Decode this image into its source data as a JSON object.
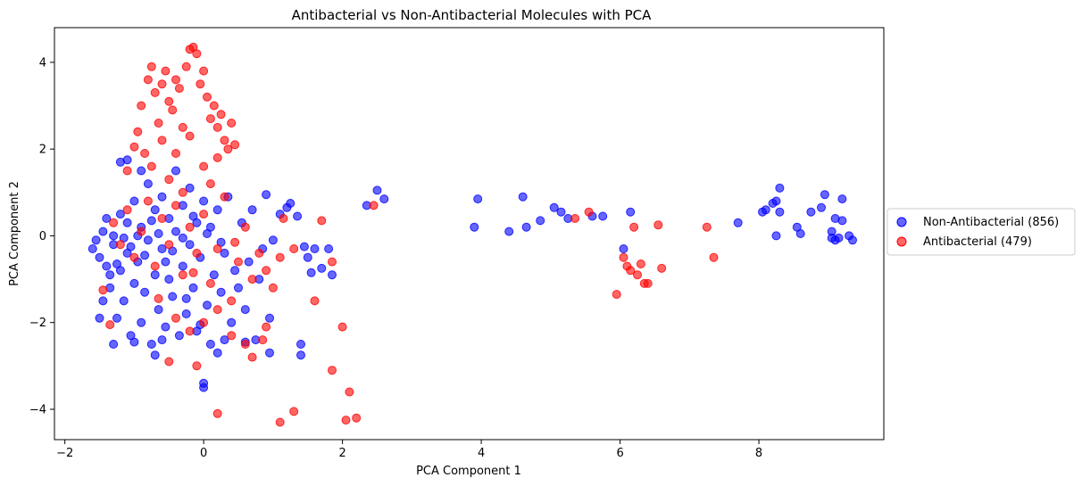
{
  "chart_data": {
    "type": "scatter",
    "title": "Antibacterial vs Non-Antibacterial Molecules with PCA",
    "xlabel": "PCA Component 1",
    "ylabel": "PCA Component 2",
    "xlim": [
      -2.15,
      9.8
    ],
    "ylim": [
      -4.7,
      4.8
    ],
    "xticks": [
      -2,
      0,
      2,
      4,
      6,
      8
    ],
    "yticks": [
      -4,
      -2,
      0,
      2,
      4
    ],
    "grid": false,
    "legend_position": "right-outside",
    "series": [
      {
        "name": "Non-Antibacterial (856)",
        "color": "#0000ff",
        "points": [
          [
            -1.6,
            -0.3
          ],
          [
            -1.55,
            -0.1
          ],
          [
            -1.5,
            -0.5
          ],
          [
            -1.45,
            0.1
          ],
          [
            -1.4,
            -0.7
          ],
          [
            -1.4,
            0.4
          ],
          [
            -1.35,
            -1.2
          ],
          [
            -1.3,
            -0.2
          ],
          [
            -1.3,
            0.0
          ],
          [
            -1.25,
            -1.9
          ],
          [
            -1.2,
            -0.8
          ],
          [
            -1.2,
            0.5
          ],
          [
            -1.15,
            -1.5
          ],
          [
            -1.1,
            -0.4
          ],
          [
            -1.1,
            0.3
          ],
          [
            -1.05,
            -2.3
          ],
          [
            -1.0,
            -1.1
          ],
          [
            -1.0,
            0.8
          ],
          [
            -0.95,
            -0.6
          ],
          [
            -0.9,
            -2.0
          ],
          [
            -0.9,
            0.2
          ],
          [
            -0.85,
            -1.3
          ],
          [
            -0.8,
            -0.1
          ],
          [
            -0.8,
            1.2
          ],
          [
            -0.75,
            -2.5
          ],
          [
            -0.7,
            -0.9
          ],
          [
            -0.7,
            0.6
          ],
          [
            -0.65,
            -1.7
          ],
          [
            -0.6,
            -0.3
          ],
          [
            -0.6,
            0.9
          ],
          [
            -0.55,
            -2.1
          ],
          [
            -0.5,
            -1.0
          ],
          [
            -0.5,
            0.4
          ],
          [
            -0.45,
            -1.4
          ],
          [
            -0.4,
            0.1
          ],
          [
            -0.4,
            1.5
          ],
          [
            -0.35,
            -2.3
          ],
          [
            -0.3,
            -0.7
          ],
          [
            -0.3,
            0.7
          ],
          [
            -0.25,
            -1.8
          ],
          [
            -0.2,
            -0.2
          ],
          [
            -0.2,
            1.1
          ],
          [
            -0.15,
            -1.2
          ],
          [
            -0.1,
            0.3
          ],
          [
            -0.1,
            -2.2
          ],
          [
            -0.05,
            -0.5
          ],
          [
            0.0,
            0.8
          ],
          [
            0.0,
            -3.4
          ],
          [
            0.0,
            -3.5
          ],
          [
            0.05,
            -1.6
          ],
          [
            0.1,
            0.2
          ],
          [
            0.1,
            -2.5
          ],
          [
            0.15,
            -0.9
          ],
          [
            0.2,
            0.6
          ],
          [
            0.2,
            -2.7
          ],
          [
            0.25,
            -1.3
          ],
          [
            0.3,
            -0.4
          ],
          [
            0.35,
            0.9
          ],
          [
            0.4,
            -2.0
          ],
          [
            0.45,
            -0.8
          ],
          [
            -1.2,
            1.7
          ],
          [
            -1.1,
            1.75
          ],
          [
            -0.9,
            1.5
          ],
          [
            -1.0,
            -2.45
          ],
          [
            -1.3,
            -2.5
          ],
          [
            -0.7,
            -2.75
          ],
          [
            -0.6,
            -2.4
          ],
          [
            -1.5,
            -1.9
          ],
          [
            -1.45,
            -1.5
          ],
          [
            -0.3,
            -0.05
          ],
          [
            -0.65,
            0.05
          ],
          [
            -0.95,
            0.0
          ],
          [
            -1.25,
            -0.65
          ],
          [
            -0.85,
            -0.45
          ],
          [
            -0.55,
            -0.6
          ],
          [
            -0.15,
            0.45
          ],
          [
            0.05,
            0.05
          ],
          [
            -0.45,
            -0.35
          ],
          [
            -1.05,
            -0.25
          ],
          [
            -0.75,
            0.35
          ],
          [
            0.5,
            -1.2
          ],
          [
            0.55,
            0.3
          ],
          [
            0.6,
            -1.7
          ],
          [
            0.65,
            -0.6
          ],
          [
            0.7,
            0.6
          ],
          [
            0.75,
            -2.4
          ],
          [
            0.8,
            -1.0
          ],
          [
            0.85,
            -0.3
          ],
          [
            0.9,
            0.95
          ],
          [
            0.95,
            -1.9
          ],
          [
            1.0,
            -0.1
          ],
          [
            1.1,
            0.5
          ],
          [
            1.2,
            0.65
          ],
          [
            1.25,
            0.75
          ],
          [
            1.35,
            0.45
          ],
          [
            1.45,
            -0.25
          ],
          [
            1.5,
            -0.5
          ],
          [
            1.55,
            -0.85
          ],
          [
            1.6,
            -0.3
          ],
          [
            1.7,
            -0.75
          ],
          [
            1.8,
            -0.3
          ],
          [
            1.85,
            -0.9
          ],
          [
            0.95,
            -2.7
          ],
          [
            1.4,
            -2.5
          ],
          [
            1.4,
            -2.75
          ],
          [
            0.3,
            -2.4
          ],
          [
            0.6,
            -2.45
          ],
          [
            2.35,
            0.7
          ],
          [
            2.5,
            1.05
          ],
          [
            2.6,
            0.85
          ],
          [
            3.9,
            0.2
          ],
          [
            3.95,
            0.85
          ],
          [
            4.4,
            0.1
          ],
          [
            4.6,
            0.9
          ],
          [
            4.65,
            0.2
          ],
          [
            4.85,
            0.35
          ],
          [
            5.05,
            0.65
          ],
          [
            5.15,
            0.55
          ],
          [
            5.25,
            0.4
          ],
          [
            5.6,
            0.45
          ],
          [
            5.75,
            0.45
          ],
          [
            6.05,
            -0.3
          ],
          [
            6.15,
            0.55
          ],
          [
            7.7,
            0.3
          ],
          [
            8.05,
            0.55
          ],
          [
            8.1,
            0.6
          ],
          [
            8.2,
            0.75
          ],
          [
            8.25,
            0.8
          ],
          [
            8.3,
            1.1
          ],
          [
            8.3,
            0.55
          ],
          [
            8.25,
            0.0
          ],
          [
            8.55,
            0.2
          ],
          [
            8.6,
            0.05
          ],
          [
            8.75,
            0.55
          ],
          [
            8.9,
            0.65
          ],
          [
            8.95,
            0.95
          ],
          [
            9.05,
            0.1
          ],
          [
            9.1,
            0.4
          ],
          [
            9.15,
            -0.05
          ],
          [
            9.2,
            0.85
          ],
          [
            9.2,
            0.35
          ],
          [
            9.3,
            0.0
          ],
          [
            9.35,
            -0.1
          ],
          [
            9.1,
            -0.1
          ],
          [
            9.05,
            -0.05
          ],
          [
            -1.35,
            -0.9
          ],
          [
            -1.15,
            -0.05
          ],
          [
            -0.25,
            -1.45
          ],
          [
            -0.05,
            -2.05
          ],
          [
            0.25,
            -0.15
          ]
        ]
      },
      {
        "name": "Antibacterial (479)",
        "color": "#ff0000",
        "points": [
          [
            -0.9,
            3.0
          ],
          [
            -0.8,
            3.6
          ],
          [
            -0.75,
            3.9
          ],
          [
            -0.7,
            3.3
          ],
          [
            -0.65,
            2.6
          ],
          [
            -0.6,
            3.5
          ],
          [
            -0.55,
            3.8
          ],
          [
            -0.5,
            3.1
          ],
          [
            -0.45,
            2.9
          ],
          [
            -0.4,
            3.6
          ],
          [
            -0.35,
            3.4
          ],
          [
            -0.3,
            2.5
          ],
          [
            -0.25,
            3.9
          ],
          [
            -0.2,
            4.3
          ],
          [
            -0.15,
            4.35
          ],
          [
            -0.1,
            4.2
          ],
          [
            -0.05,
            3.5
          ],
          [
            0.0,
            3.8
          ],
          [
            0.05,
            3.2
          ],
          [
            0.1,
            2.7
          ],
          [
            0.15,
            3.0
          ],
          [
            0.2,
            2.5
          ],
          [
            0.25,
            2.8
          ],
          [
            0.3,
            2.2
          ],
          [
            0.35,
            2.0
          ],
          [
            0.4,
            2.6
          ],
          [
            0.45,
            2.1
          ],
          [
            -0.95,
            2.4
          ],
          [
            -1.0,
            2.05
          ],
          [
            -0.85,
            1.9
          ],
          [
            -0.6,
            2.2
          ],
          [
            -0.4,
            1.9
          ],
          [
            -0.2,
            2.3
          ],
          [
            0.0,
            1.6
          ],
          [
            0.2,
            1.8
          ],
          [
            -0.75,
            1.6
          ],
          [
            -1.1,
            1.5
          ],
          [
            -0.5,
            1.3
          ],
          [
            -0.3,
            1.0
          ],
          [
            0.1,
            1.2
          ],
          [
            -1.3,
            0.3
          ],
          [
            -1.2,
            -0.2
          ],
          [
            -1.1,
            0.6
          ],
          [
            -1.0,
            -0.5
          ],
          [
            -0.9,
            0.1
          ],
          [
            -0.8,
            0.8
          ],
          [
            -0.7,
            -0.7
          ],
          [
            -0.6,
            0.4
          ],
          [
            -0.5,
            -0.2
          ],
          [
            -0.4,
            0.7
          ],
          [
            -0.3,
            -0.9
          ],
          [
            -0.2,
            0.2
          ],
          [
            -0.1,
            -0.4
          ],
          [
            0.0,
            0.5
          ],
          [
            0.1,
            -1.1
          ],
          [
            0.2,
            -0.3
          ],
          [
            0.3,
            0.9
          ],
          [
            0.4,
            -1.5
          ],
          [
            0.5,
            -0.6
          ],
          [
            0.6,
            0.2
          ],
          [
            0.7,
            -1.0
          ],
          [
            0.8,
            -0.4
          ],
          [
            0.9,
            -0.8
          ],
          [
            1.0,
            -1.2
          ],
          [
            1.1,
            -0.5
          ],
          [
            1.15,
            0.4
          ],
          [
            1.3,
            -0.3
          ],
          [
            -0.4,
            -1.9
          ],
          [
            -0.2,
            -2.2
          ],
          [
            0.0,
            -2.0
          ],
          [
            0.2,
            -1.7
          ],
          [
            0.4,
            -2.3
          ],
          [
            0.6,
            -2.5
          ],
          [
            0.7,
            -2.8
          ],
          [
            0.85,
            -2.4
          ],
          [
            0.9,
            -2.1
          ],
          [
            -0.5,
            -2.9
          ],
          [
            -0.1,
            -3.0
          ],
          [
            0.2,
            -4.1
          ],
          [
            1.1,
            -4.3
          ],
          [
            1.3,
            -4.05
          ],
          [
            1.85,
            -3.1
          ],
          [
            2.0,
            -2.1
          ],
          [
            2.05,
            -4.25
          ],
          [
            2.1,
            -3.6
          ],
          [
            2.2,
            -4.2
          ],
          [
            1.6,
            -1.5
          ],
          [
            1.85,
            -0.6
          ],
          [
            1.7,
            0.35
          ],
          [
            2.45,
            0.7
          ],
          [
            5.35,
            0.4
          ],
          [
            5.55,
            0.55
          ],
          [
            6.05,
            -0.5
          ],
          [
            6.1,
            -0.7
          ],
          [
            6.15,
            -0.8
          ],
          [
            6.2,
            0.2
          ],
          [
            6.25,
            -0.9
          ],
          [
            6.3,
            -0.65
          ],
          [
            6.35,
            -1.1
          ],
          [
            6.4,
            -1.1
          ],
          [
            5.95,
            -1.35
          ],
          [
            6.55,
            0.25
          ],
          [
            6.6,
            -0.75
          ],
          [
            7.25,
            0.2
          ],
          [
            7.35,
            -0.5
          ],
          [
            -1.45,
            -1.25
          ],
          [
            -1.35,
            -2.05
          ],
          [
            -0.65,
            -1.45
          ],
          [
            -0.15,
            -0.85
          ],
          [
            0.45,
            -0.15
          ]
        ]
      }
    ]
  }
}
